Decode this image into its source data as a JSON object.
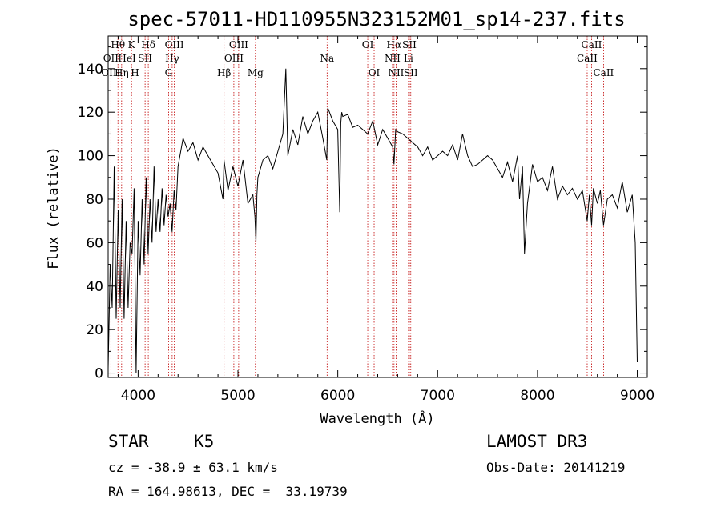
{
  "chart_data": {
    "type": "line",
    "title": "spec-57011-HD110955N323152M01_sp14-237.fits",
    "xlabel": "Wavelength (Å)",
    "ylabel": "Flux (relative)",
    "xlim": [
      3700,
      9100
    ],
    "ylim": [
      -2,
      155
    ],
    "xticks": [
      4000,
      5000,
      6000,
      7000,
      8000,
      9000
    ],
    "yticks": [
      0,
      20,
      40,
      60,
      80,
      100,
      120,
      140
    ],
    "series": [
      {
        "name": "flux",
        "x": [
          3700,
          3720,
          3740,
          3760,
          3780,
          3800,
          3820,
          3840,
          3860,
          3880,
          3900,
          3920,
          3940,
          3960,
          3980,
          4000,
          4020,
          4040,
          4060,
          4080,
          4100,
          4120,
          4140,
          4160,
          4180,
          4200,
          4220,
          4240,
          4260,
          4280,
          4300,
          4320,
          4340,
          4360,
          4380,
          4400,
          4450,
          4500,
          4550,
          4600,
          4650,
          4700,
          4750,
          4800,
          4850,
          4860,
          4900,
          4950,
          5000,
          5050,
          5100,
          5150,
          5170,
          5180,
          5190,
          5200,
          5250,
          5300,
          5350,
          5400,
          5450,
          5480,
          5500,
          5550,
          5600,
          5650,
          5700,
          5750,
          5800,
          5850,
          5890,
          5900,
          5950,
          6000,
          6020,
          6030,
          6040,
          6050,
          6100,
          6150,
          6200,
          6250,
          6300,
          6350,
          6400,
          6450,
          6500,
          6550,
          6563,
          6580,
          6600,
          6650,
          6700,
          6750,
          6800,
          6850,
          6900,
          6950,
          7000,
          7050,
          7100,
          7150,
          7200,
          7250,
          7300,
          7350,
          7400,
          7450,
          7500,
          7550,
          7600,
          7650,
          7700,
          7750,
          7800,
          7820,
          7850,
          7870,
          7900,
          7950,
          8000,
          8050,
          8100,
          8150,
          8200,
          8250,
          8300,
          8350,
          8400,
          8450,
          8498,
          8520,
          8542,
          8560,
          8600,
          8630,
          8662,
          8700,
          8750,
          8800,
          8850,
          8900,
          8950,
          8980,
          9000
        ],
        "y": [
          2,
          50,
          30,
          95,
          25,
          75,
          30,
          80,
          25,
          70,
          30,
          60,
          55,
          85,
          0,
          70,
          45,
          80,
          50,
          90,
          55,
          80,
          60,
          95,
          65,
          80,
          65,
          85,
          68,
          82,
          72,
          78,
          65,
          84,
          75,
          95,
          108,
          102,
          106,
          98,
          104,
          100,
          96,
          92,
          80,
          98,
          84,
          95,
          86,
          98,
          78,
          82,
          72,
          60,
          82,
          90,
          98,
          100,
          94,
          102,
          110,
          140,
          100,
          112,
          105,
          118,
          110,
          116,
          120,
          108,
          98,
          122,
          116,
          112,
          74,
          115,
          120,
          118,
          119,
          113,
          114,
          112,
          110,
          116,
          105,
          112,
          108,
          104,
          96,
          112,
          111,
          110,
          108,
          106,
          104,
          100,
          104,
          98,
          100,
          102,
          100,
          105,
          98,
          110,
          100,
          95,
          96,
          98,
          100,
          98,
          94,
          90,
          97,
          88,
          100,
          80,
          95,
          55,
          78,
          96,
          88,
          90,
          84,
          95,
          80,
          86,
          82,
          85,
          80,
          84,
          70,
          82,
          68,
          85,
          78,
          84,
          68,
          80,
          82,
          76,
          88,
          74,
          82,
          60,
          5
        ]
      }
    ],
    "line_markers": [
      {
        "label": "Hθ",
        "wave": 3798,
        "row": 0
      },
      {
        "label": "OII",
        "wave": 3727,
        "row": 1
      },
      {
        "label": "OIII",
        "wave": 3727,
        "row": 2
      },
      {
        "label": "K",
        "wave": 3934,
        "row": 0
      },
      {
        "label": "HeI",
        "wave": 3889,
        "row": 1
      },
      {
        "label": "Hη",
        "wave": 3835,
        "row": 2
      },
      {
        "label": "H",
        "wave": 3969,
        "row": 2
      },
      {
        "label": "Hδ",
        "wave": 4102,
        "row": 0
      },
      {
        "label": "SII",
        "wave": 4070,
        "row": 1
      },
      {
        "label": "OIII",
        "wave": 4363,
        "row": 0
      },
      {
        "label": "Hγ",
        "wave": 4341,
        "row": 1
      },
      {
        "label": "G",
        "wave": 4305,
        "row": 2
      },
      {
        "label": "Hβ",
        "wave": 4861,
        "row": 2
      },
      {
        "label": "OIII",
        "wave": 5007,
        "row": 0
      },
      {
        "label": "OIII",
        "wave": 4959,
        "row": 1
      },
      {
        "label": "Mg",
        "wave": 5175,
        "row": 2
      },
      {
        "label": "Na",
        "wave": 5893,
        "row": 1
      },
      {
        "label": "OI",
        "wave": 6300,
        "row": 0
      },
      {
        "label": "OI",
        "wave": 6364,
        "row": 2
      },
      {
        "label": "Hα",
        "wave": 6563,
        "row": 0
      },
      {
        "label": "SII",
        "wave": 6717,
        "row": 0
      },
      {
        "label": "NII",
        "wave": 6548,
        "row": 1
      },
      {
        "label": "Li",
        "wave": 6708,
        "row": 1
      },
      {
        "label": "NII",
        "wave": 6584,
        "row": 2
      },
      {
        "label": "SII",
        "wave": 6731,
        "row": 2
      },
      {
        "label": "CaII",
        "wave": 8542,
        "row": 0
      },
      {
        "label": "CaII",
        "wave": 8498,
        "row": 1
      },
      {
        "label": "CaII",
        "wave": 8662,
        "row": 2
      }
    ]
  },
  "footer": {
    "object_class": "STAR",
    "subclass": "K5",
    "survey": "LAMOST DR3",
    "cz": "cz = -38.9 ± 63.1 km/s",
    "obs_date": "Obs-Date: 20141219",
    "coords": "RA = 164.98613, DEC =  33.19739"
  },
  "colors": {
    "spectrum": "#000000",
    "line_marker": "#c00000",
    "axis": "#000000"
  }
}
